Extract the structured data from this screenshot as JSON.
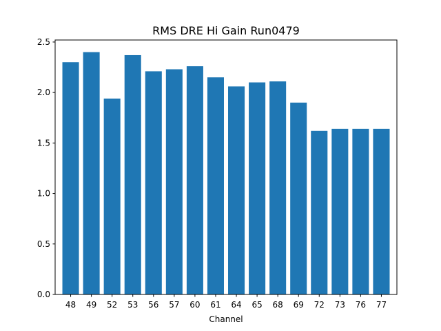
{
  "chart_data": {
    "type": "bar",
    "title": "RMS DRE Hi Gain Run0479",
    "xlabel": "Channel",
    "ylabel": "",
    "categories": [
      "48",
      "49",
      "52",
      "53",
      "56",
      "57",
      "60",
      "61",
      "64",
      "65",
      "68",
      "69",
      "72",
      "73",
      "76",
      "77"
    ],
    "values": [
      2.3,
      2.4,
      1.94,
      2.37,
      2.21,
      2.23,
      2.26,
      2.15,
      2.06,
      2.1,
      2.11,
      1.9,
      1.62,
      1.64,
      1.64,
      1.64
    ],
    "ylim": [
      0,
      2.52
    ],
    "yticks": [
      0.0,
      0.5,
      1.0,
      1.5,
      2.0,
      2.5
    ],
    "ytick_labels": [
      "0.0",
      "0.5",
      "1.0",
      "1.5",
      "2.0",
      "2.5"
    ],
    "bar_color": "#1f77b4",
    "grid": false,
    "legend": "none"
  }
}
